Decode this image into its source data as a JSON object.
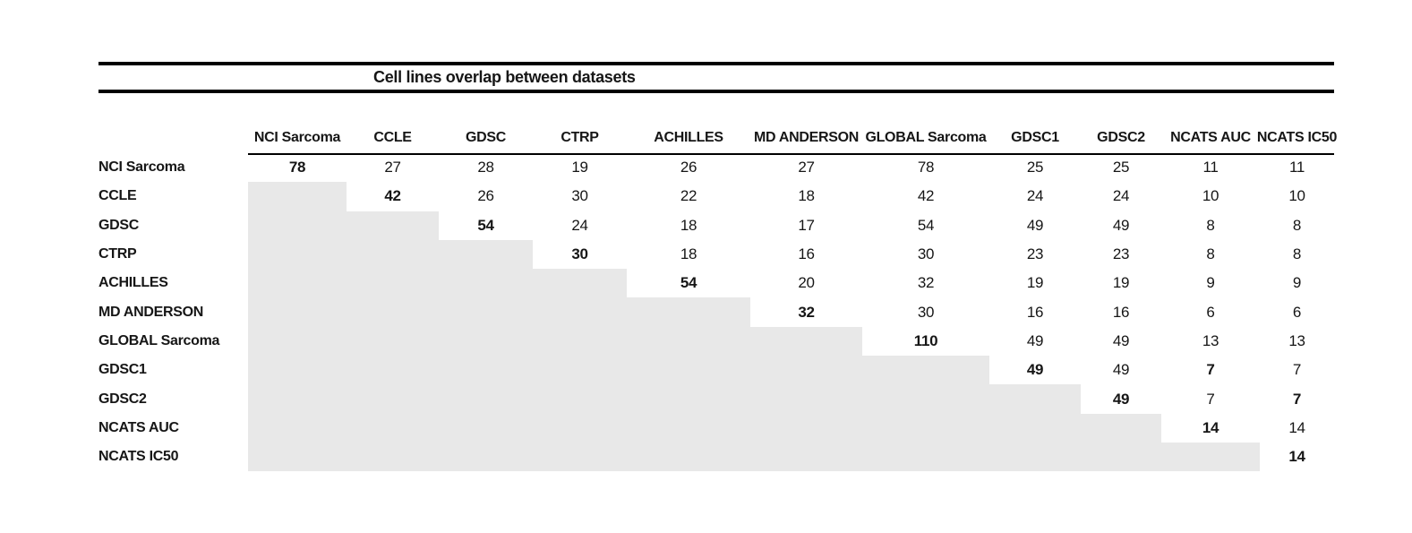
{
  "colors": {
    "background": "#ffffff",
    "text": "#161616",
    "rule": "#000000",
    "shade": "#e8e8e8"
  },
  "chart_data": {
    "type": "table",
    "title": "Cell lines overlap between datasets",
    "description_visible": "Pairwise overlap matrix; upper triangle shows counts, lower triangle is shaded grey, diagonal values are bold",
    "labels": [
      "NCI Sarcoma",
      "CCLE",
      "GDSC",
      "CTRP",
      "ACHILLES",
      "MD ANDERSON",
      "GLOBAL Sarcoma",
      "GDSC1",
      "GDSC2",
      "NCATS AUC",
      "NCATS IC50"
    ],
    "matrix": [
      [
        78,
        27,
        28,
        19,
        26,
        27,
        78,
        25,
        25,
        11,
        11
      ],
      [
        null,
        42,
        26,
        30,
        22,
        18,
        42,
        24,
        24,
        10,
        10
      ],
      [
        null,
        null,
        54,
        24,
        18,
        17,
        54,
        49,
        49,
        8,
        8
      ],
      [
        null,
        null,
        null,
        30,
        18,
        16,
        30,
        23,
        23,
        8,
        8
      ],
      [
        null,
        null,
        null,
        null,
        54,
        20,
        32,
        19,
        19,
        9,
        9
      ],
      [
        null,
        null,
        null,
        null,
        null,
        32,
        30,
        16,
        16,
        6,
        6
      ],
      [
        null,
        null,
        null,
        null,
        null,
        null,
        110,
        49,
        49,
        13,
        13
      ],
      [
        null,
        null,
        null,
        null,
        null,
        null,
        null,
        49,
        49,
        7,
        7
      ],
      [
        null,
        null,
        null,
        null,
        null,
        null,
        null,
        null,
        49,
        7,
        7
      ],
      [
        null,
        null,
        null,
        null,
        null,
        null,
        null,
        null,
        null,
        14,
        14
      ],
      [
        null,
        null,
        null,
        null,
        null,
        null,
        null,
        null,
        null,
        null,
        14
      ]
    ],
    "bold_cells": [
      [
        0,
        0
      ],
      [
        1,
        1
      ],
      [
        2,
        2
      ],
      [
        3,
        3
      ],
      [
        4,
        4
      ],
      [
        5,
        5
      ],
      [
        6,
        6
      ],
      [
        7,
        7
      ],
      [
        7,
        9
      ],
      [
        8,
        8
      ],
      [
        8,
        10
      ],
      [
        9,
        9
      ],
      [
        10,
        10
      ]
    ],
    "shaded_lower_triangle": true,
    "legend_position": "none",
    "grid": false
  }
}
